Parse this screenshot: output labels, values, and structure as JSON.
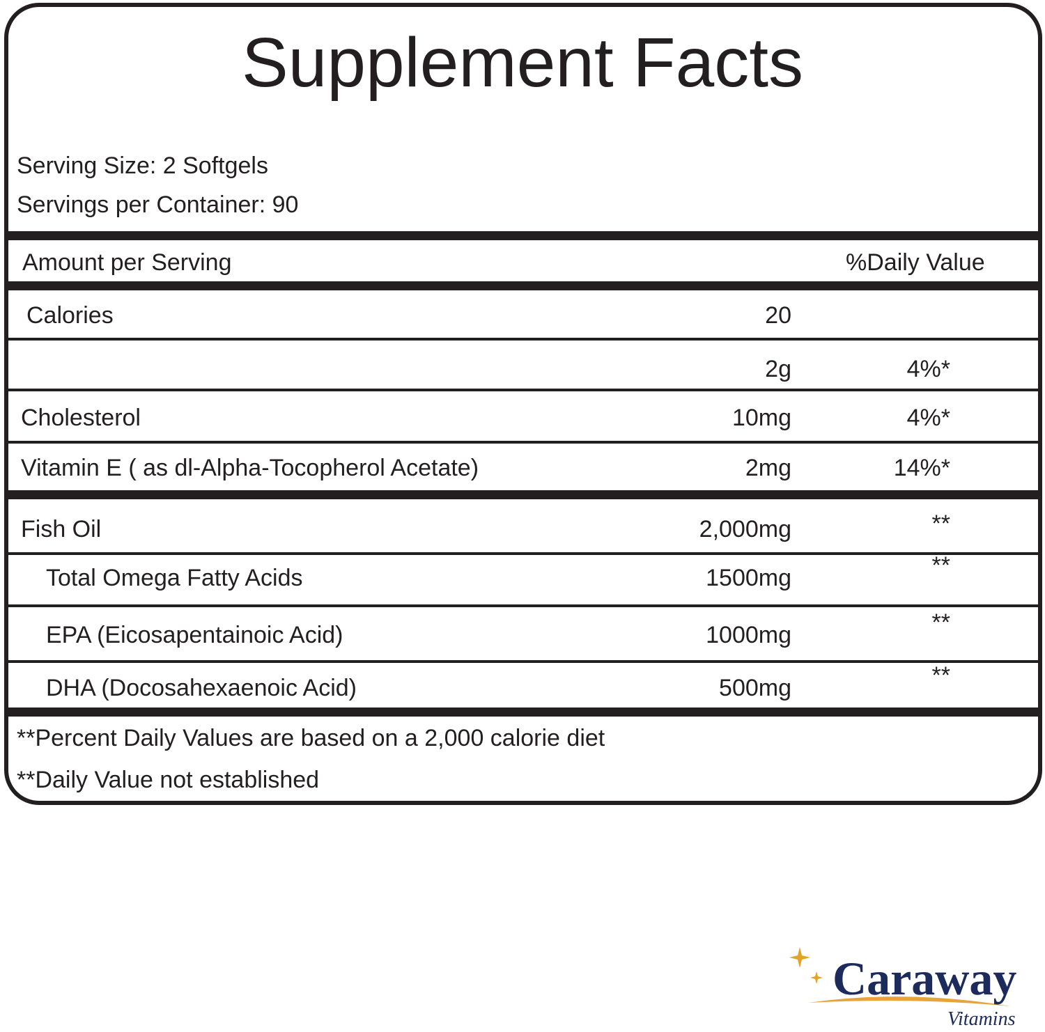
{
  "title": "Supplement Facts",
  "serving_size": "Serving Size: 2 Softgels",
  "servings_per_container": "Servings per Container: 90",
  "header": {
    "amount": "Amount per Serving",
    "daily_value": "%Daily Value"
  },
  "rows": [
    {
      "name": "Calories",
      "amount": "20"
    },
    {
      "name": null,
      "amount": "2g",
      "daily_value": "4%*"
    },
    {
      "name": "Cholesterol",
      "amount": "10mg",
      "daily_value": "4%*"
    },
    {
      "name": "Vitamin E ( as dl-Alpha-Tocopherol Acetate)",
      "amount": "2mg",
      "daily_value": "14%*"
    },
    {
      "name": "Fish Oil",
      "amount": "2,000mg",
      "daily_value": "**"
    },
    {
      "name": "Total Omega Fatty Acids",
      "amount": "1500mg",
      "daily_value": "**"
    },
    {
      "name": "EPA (Eicosapentainoic Acid)",
      "amount": "1000mg",
      "daily_value": "**"
    },
    {
      "name": "DHA (Docosahexaenoic Acid)",
      "amount": "500mg",
      "daily_value": "**"
    }
  ],
  "footnotes": [
    "**Percent Daily Values are based on a 2,000 calorie diet",
    "**Daily Value not established"
  ],
  "logo": {
    "brand": "Caraway",
    "tagline": "Vitamins"
  }
}
